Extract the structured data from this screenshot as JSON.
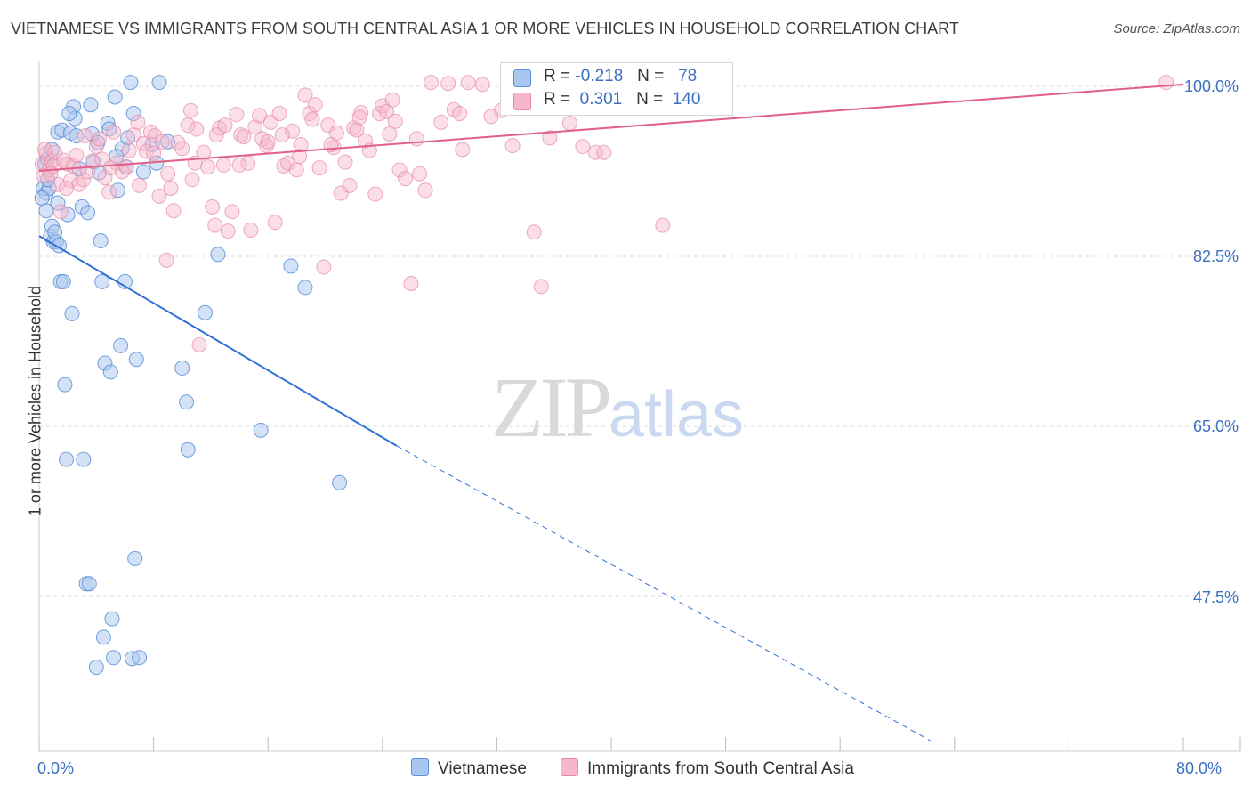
{
  "title": "VIETNAMESE VS IMMIGRANTS FROM SOUTH CENTRAL ASIA 1 OR MORE VEHICLES IN HOUSEHOLD CORRELATION CHART",
  "source": "Source: ZipAtlas.com",
  "watermark": {
    "zip": "ZIP",
    "atlas": "atlas"
  },
  "legend": {
    "rows": [
      {
        "r_label": "R =",
        "r_value": "-0.218",
        "n_label": "N =",
        "n_value": "78"
      },
      {
        "r_label": "R =",
        "r_value": "0.301",
        "n_label": "N =",
        "n_value": "140"
      }
    ]
  },
  "colors": {
    "series1_fill": "#a9c6ef",
    "series1_stroke": "#5b8fd6",
    "series1_line": "#2e6fd4",
    "series2_fill": "#f7b6c9",
    "series2_stroke": "#e58aa5",
    "series2_line": "#e0608a",
    "tick_text": "#3b6fc4",
    "grid": "#dcdcdc"
  },
  "chart_data": {
    "type": "scatter",
    "xlabel": "",
    "ylabel": "1 or more Vehicles in Household",
    "x_tick_labels": [
      "0.0%",
      "80.0%"
    ],
    "y_tick_labels": [
      "100.0%",
      "82.5%",
      "65.0%",
      "47.5%"
    ],
    "y_ticks": [
      100.0,
      82.5,
      65.0,
      47.5
    ],
    "xlim": [
      0,
      80
    ],
    "ylim": [
      32.5,
      102
    ],
    "grid": true,
    "legend_position": "bottom",
    "series": [
      {
        "name": "Vietnamese",
        "trend": {
          "x": [
            0,
            25
          ],
          "y": [
            84.6,
            63.0
          ],
          "dashed_to": [
            62.5,
            32.5
          ]
        },
        "points": [
          [
            0.3,
            89.5
          ],
          [
            0.4,
            92.0
          ],
          [
            0.5,
            89.0
          ],
          [
            0.6,
            92.5
          ],
          [
            0.7,
            89.5
          ],
          [
            0.8,
            84.6
          ],
          [
            0.9,
            85.6
          ],
          [
            1.0,
            84.0
          ],
          [
            1.2,
            84.0
          ],
          [
            1.3,
            95.3
          ],
          [
            1.4,
            83.6
          ],
          [
            1.5,
            79.9
          ],
          [
            1.6,
            95.5
          ],
          [
            1.7,
            79.9
          ],
          [
            1.8,
            69.3
          ],
          [
            1.9,
            61.6
          ],
          [
            2.0,
            86.8
          ],
          [
            2.2,
            95.2
          ],
          [
            2.3,
            76.6
          ],
          [
            2.4,
            97.9
          ],
          [
            2.5,
            96.7
          ],
          [
            2.6,
            94.9
          ],
          [
            2.8,
            91.5
          ],
          [
            3.0,
            87.6
          ],
          [
            3.1,
            61.6
          ],
          [
            3.3,
            48.8
          ],
          [
            3.5,
            48.8
          ],
          [
            3.6,
            98.1
          ],
          [
            3.7,
            95.1
          ],
          [
            3.8,
            92.2
          ],
          [
            4.0,
            40.2
          ],
          [
            4.2,
            91.1
          ],
          [
            4.3,
            84.1
          ],
          [
            4.4,
            79.9
          ],
          [
            4.5,
            43.3
          ],
          [
            4.6,
            71.5
          ],
          [
            4.8,
            96.2
          ],
          [
            4.9,
            95.6
          ],
          [
            5.0,
            70.6
          ],
          [
            5.1,
            45.2
          ],
          [
            5.2,
            41.2
          ],
          [
            5.3,
            98.9
          ],
          [
            5.5,
            89.3
          ],
          [
            5.7,
            73.3
          ],
          [
            5.8,
            93.6
          ],
          [
            6.0,
            79.9
          ],
          [
            6.2,
            94.7
          ],
          [
            6.4,
            100.4
          ],
          [
            6.5,
            41.1
          ],
          [
            6.6,
            97.2
          ],
          [
            6.7,
            51.4
          ],
          [
            6.8,
            71.9
          ],
          [
            7.0,
            41.2
          ],
          [
            7.3,
            91.2
          ],
          [
            8.2,
            92.1
          ],
          [
            8.4,
            100.4
          ],
          [
            9.0,
            94.3
          ],
          [
            10.0,
            71.0
          ],
          [
            10.3,
            67.5
          ],
          [
            10.4,
            62.6
          ],
          [
            11.6,
            76.7
          ],
          [
            12.5,
            82.7
          ],
          [
            15.5,
            64.6
          ],
          [
            17.6,
            81.5
          ],
          [
            18.6,
            79.3
          ],
          [
            21.0,
            59.2
          ],
          [
            0.2,
            88.5
          ],
          [
            0.9,
            93.5
          ],
          [
            1.1,
            85.0
          ],
          [
            0.5,
            87.2
          ],
          [
            2.1,
            97.2
          ],
          [
            3.4,
            87.0
          ],
          [
            4.1,
            94.2
          ],
          [
            5.4,
            92.8
          ],
          [
            6.1,
            91.7
          ],
          [
            7.9,
            94.0
          ],
          [
            0.6,
            90.4
          ],
          [
            1.3,
            88.0
          ]
        ]
      },
      {
        "name": "Immigrants from South Central Asia",
        "trend": {
          "x": [
            0,
            80
          ],
          "y": [
            91.3,
            100.2
          ]
        },
        "points": [
          [
            0.2,
            92.0
          ],
          [
            0.3,
            90.8
          ],
          [
            0.5,
            93.1
          ],
          [
            0.7,
            91.4
          ],
          [
            0.9,
            92.3
          ],
          [
            1.0,
            91.8
          ],
          [
            1.3,
            89.9
          ],
          [
            1.5,
            87.1
          ],
          [
            1.7,
            92.4
          ],
          [
            2.0,
            92.0
          ],
          [
            2.2,
            90.3
          ],
          [
            2.4,
            91.8
          ],
          [
            2.8,
            89.9
          ],
          [
            3.1,
            90.4
          ],
          [
            3.4,
            91.2
          ],
          [
            3.7,
            92.3
          ],
          [
            4.0,
            93.8
          ],
          [
            4.2,
            94.6
          ],
          [
            4.4,
            92.5
          ],
          [
            4.6,
            90.6
          ],
          [
            4.9,
            89.1
          ],
          [
            5.2,
            95.3
          ],
          [
            5.4,
            92.1
          ],
          [
            5.8,
            91.2
          ],
          [
            6.1,
            91.7
          ],
          [
            6.3,
            93.4
          ],
          [
            6.6,
            95.0
          ],
          [
            6.9,
            96.3
          ],
          [
            7.3,
            94.1
          ],
          [
            7.5,
            93.3
          ],
          [
            7.8,
            95.3
          ],
          [
            8.1,
            94.9
          ],
          [
            8.4,
            88.7
          ],
          [
            8.6,
            94.3
          ],
          [
            8.9,
            82.1
          ],
          [
            9.2,
            89.5
          ],
          [
            9.4,
            87.2
          ],
          [
            9.7,
            94.2
          ],
          [
            10.0,
            93.6
          ],
          [
            10.4,
            96.0
          ],
          [
            10.6,
            97.5
          ],
          [
            10.9,
            92.1
          ],
          [
            11.2,
            73.4
          ],
          [
            11.5,
            93.2
          ],
          [
            11.8,
            91.7
          ],
          [
            12.1,
            87.6
          ],
          [
            12.3,
            85.7
          ],
          [
            12.6,
            95.7
          ],
          [
            12.9,
            91.9
          ],
          [
            13.2,
            85.1
          ],
          [
            13.5,
            87.1
          ],
          [
            13.8,
            97.1
          ],
          [
            14.1,
            95.0
          ],
          [
            14.3,
            94.8
          ],
          [
            14.6,
            92.1
          ],
          [
            14.8,
            85.2
          ],
          [
            15.1,
            95.8
          ],
          [
            15.4,
            97.0
          ],
          [
            15.6,
            94.6
          ],
          [
            15.9,
            93.9
          ],
          [
            16.2,
            96.3
          ],
          [
            16.5,
            86.0
          ],
          [
            16.8,
            97.2
          ],
          [
            17.1,
            91.8
          ],
          [
            17.4,
            92.1
          ],
          [
            17.7,
            95.4
          ],
          [
            18.0,
            91.4
          ],
          [
            18.3,
            94.0
          ],
          [
            18.6,
            99.1
          ],
          [
            18.9,
            97.2
          ],
          [
            19.1,
            96.6
          ],
          [
            19.3,
            98.1
          ],
          [
            19.6,
            91.6
          ],
          [
            19.9,
            81.4
          ],
          [
            20.2,
            96.0
          ],
          [
            20.6,
            93.7
          ],
          [
            20.8,
            95.2
          ],
          [
            21.1,
            89.0
          ],
          [
            21.4,
            92.2
          ],
          [
            21.7,
            89.8
          ],
          [
            22.0,
            95.7
          ],
          [
            22.2,
            95.5
          ],
          [
            22.5,
            97.3
          ],
          [
            22.8,
            94.4
          ],
          [
            23.1,
            93.4
          ],
          [
            23.5,
            88.9
          ],
          [
            23.8,
            97.2
          ],
          [
            24.0,
            98.0
          ],
          [
            24.3,
            97.4
          ],
          [
            24.7,
            98.6
          ],
          [
            24.9,
            96.4
          ],
          [
            25.2,
            91.4
          ],
          [
            25.6,
            90.5
          ],
          [
            26.0,
            79.7
          ],
          [
            26.6,
            91.0
          ],
          [
            27.0,
            89.3
          ],
          [
            27.4,
            100.4
          ],
          [
            28.1,
            96.3
          ],
          [
            28.6,
            100.3
          ],
          [
            29.0,
            97.6
          ],
          [
            29.6,
            93.5
          ],
          [
            30.0,
            100.4
          ],
          [
            31.0,
            100.2
          ],
          [
            32.3,
            97.5
          ],
          [
            33.1,
            93.9
          ],
          [
            34.6,
            85.0
          ],
          [
            35.1,
            79.4
          ],
          [
            35.7,
            94.7
          ],
          [
            36.4,
            100.4
          ],
          [
            37.1,
            96.2
          ],
          [
            38.0,
            93.8
          ],
          [
            38.9,
            93.2
          ],
          [
            39.5,
            93.2
          ],
          [
            43.6,
            85.7
          ],
          [
            78.8,
            100.4
          ],
          [
            0.4,
            93.5
          ],
          [
            0.8,
            91.0
          ],
          [
            1.1,
            93.2
          ],
          [
            1.9,
            89.5
          ],
          [
            2.6,
            92.9
          ],
          [
            3.2,
            94.9
          ],
          [
            5.0,
            91.6
          ],
          [
            7.0,
            89.8
          ],
          [
            8.0,
            93.1
          ],
          [
            9.0,
            91.0
          ],
          [
            10.7,
            90.4
          ],
          [
            11.0,
            95.6
          ],
          [
            12.4,
            95.0
          ],
          [
            13.0,
            96.0
          ],
          [
            14.0,
            91.9
          ],
          [
            16.0,
            94.3
          ],
          [
            17.0,
            95.0
          ],
          [
            18.2,
            92.8
          ],
          [
            20.4,
            94.0
          ],
          [
            22.4,
            96.8
          ],
          [
            24.5,
            95.1
          ],
          [
            26.4,
            94.6
          ],
          [
            29.4,
            97.2
          ],
          [
            31.6,
            96.9
          ]
        ]
      }
    ]
  }
}
